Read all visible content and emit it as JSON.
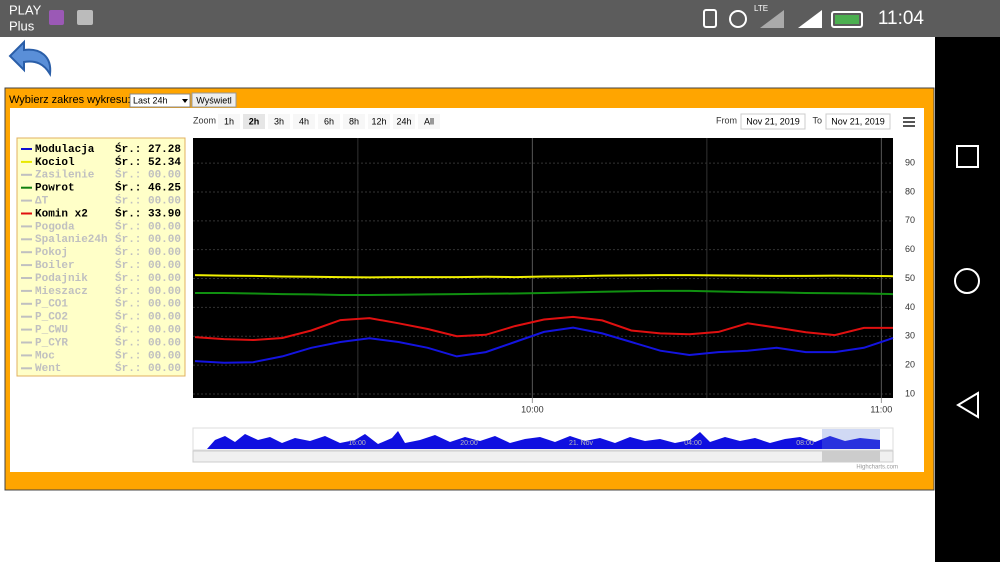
{
  "status_bar": {
    "carrier": [
      "PLAY",
      "Plus"
    ],
    "network": "LTE",
    "time": "11:04"
  },
  "toolbar": {
    "label": "Wybierz zakres wykresu:",
    "select": "Last 24h",
    "button": "Wyświetl"
  },
  "range_selector": {
    "zoom_label": "Zoom",
    "buttons": [
      "1h",
      "2h",
      "3h",
      "4h",
      "6h",
      "8h",
      "12h",
      "24h",
      "All"
    ],
    "selected": 1,
    "from_label": "From",
    "from": "Nov 21, 2019",
    "to_label": "To",
    "to": "Nov 21, 2019"
  },
  "legend": {
    "avg_label": "Śr.:",
    "items": [
      {
        "name": "Modulacja",
        "value": "27.28",
        "color": "#1010d0"
      },
      {
        "name": "Kociol",
        "value": "52.34",
        "color": "#e8e800"
      },
      {
        "name": "Zasilenie",
        "value": "00.00",
        "color": "#c0c0c0"
      },
      {
        "name": "Powrot",
        "value": "46.25",
        "color": "#108010"
      },
      {
        "name": "ΔT",
        "value": "00.00",
        "color": "#c0c0c0"
      },
      {
        "name": "Komin x2",
        "value": "33.90",
        "color": "#e01010"
      },
      {
        "name": "Pogoda",
        "value": "00.00",
        "color": "#c0c0c0"
      },
      {
        "name": "Spalanie24h",
        "value": "00.00",
        "color": "#c0c0c0"
      },
      {
        "name": "Pokoj",
        "value": "00.00",
        "color": "#c0c0c0"
      },
      {
        "name": "Boiler",
        "value": "00.00",
        "color": "#c0c0c0"
      },
      {
        "name": "Podajnik",
        "value": "00.00",
        "color": "#c0c0c0"
      },
      {
        "name": "Mieszacz",
        "value": "00.00",
        "color": "#c0c0c0"
      },
      {
        "name": "P_CO1",
        "value": "00.00",
        "color": "#c0c0c0"
      },
      {
        "name": "P_CO2",
        "value": "00.00",
        "color": "#c0c0c0"
      },
      {
        "name": "P_CWU",
        "value": "00.00",
        "color": "#c0c0c0"
      },
      {
        "name": "P_CYR",
        "value": "00.00",
        "color": "#c0c0c0"
      },
      {
        "name": "Moc",
        "value": "00.00",
        "color": "#c0c0c0"
      },
      {
        "name": "Went",
        "value": "00.00",
        "color": "#c0c0c0"
      }
    ]
  },
  "chart": {
    "type": "line",
    "x": [
      "09:02",
      "09:07",
      "09:12",
      "09:17",
      "09:22",
      "09:27",
      "09:32",
      "09:37",
      "09:42",
      "09:47",
      "09:52",
      "09:57",
      "10:02",
      "10:07",
      "10:12",
      "10:17",
      "10:22",
      "10:27",
      "10:32",
      "10:37",
      "10:42",
      "10:47",
      "10:52",
      "10:57",
      "11:02"
    ],
    "xlim": [
      "09:02",
      "11:02"
    ],
    "xticks": [
      "10:00",
      "11:00"
    ],
    "ylim": [
      8.6,
      98.7
    ],
    "yticks": [
      10,
      20,
      30,
      40,
      50,
      60,
      70,
      80,
      90
    ],
    "series": [
      {
        "name": "Kociol",
        "color": "#f0f000",
        "values": [
          51.2,
          51,
          50.9,
          50.7,
          50.6,
          50.5,
          50.4,
          50.5,
          50.5,
          50.5,
          50.6,
          50.5,
          50.7,
          50.8,
          51,
          51.1,
          51.2,
          51.2,
          51.1,
          51,
          50.9,
          50.9,
          51,
          50.9,
          50.8
        ]
      },
      {
        "name": "Powrot",
        "color": "#109010",
        "values": [
          45,
          45,
          44.8,
          44.6,
          44.5,
          44.3,
          44.3,
          44.4,
          44.5,
          44.6,
          44.7,
          44.8,
          45,
          45.2,
          45.4,
          45.6,
          45.7,
          45.7,
          45.5,
          45.3,
          45.2,
          45,
          44.9,
          44.8,
          44.6
        ]
      },
      {
        "name": "Komin x2",
        "color": "#e01010",
        "values": [
          29.7,
          29,
          28.7,
          29.4,
          32,
          35.6,
          36.3,
          34.5,
          32.5,
          30,
          30.5,
          33.5,
          35.8,
          36.7,
          35.5,
          32,
          31,
          30.7,
          31.5,
          34.5,
          33,
          31.4,
          30.4,
          32.9,
          32.9
        ]
      },
      {
        "name": "Modulacja",
        "color": "#1414e0",
        "values": [
          21.4,
          20.8,
          21,
          23,
          26,
          28,
          29.3,
          28,
          26,
          23,
          24.5,
          28,
          31.5,
          33,
          31,
          28,
          25,
          23.5,
          24.5,
          25,
          26,
          24.5,
          24.5,
          26,
          29.4
        ]
      }
    ]
  },
  "navigator": {
    "labels": [
      "16:00",
      "20:00",
      "21. Nov",
      "04:00",
      "08:00"
    ]
  },
  "credits": "Highcharts.com"
}
